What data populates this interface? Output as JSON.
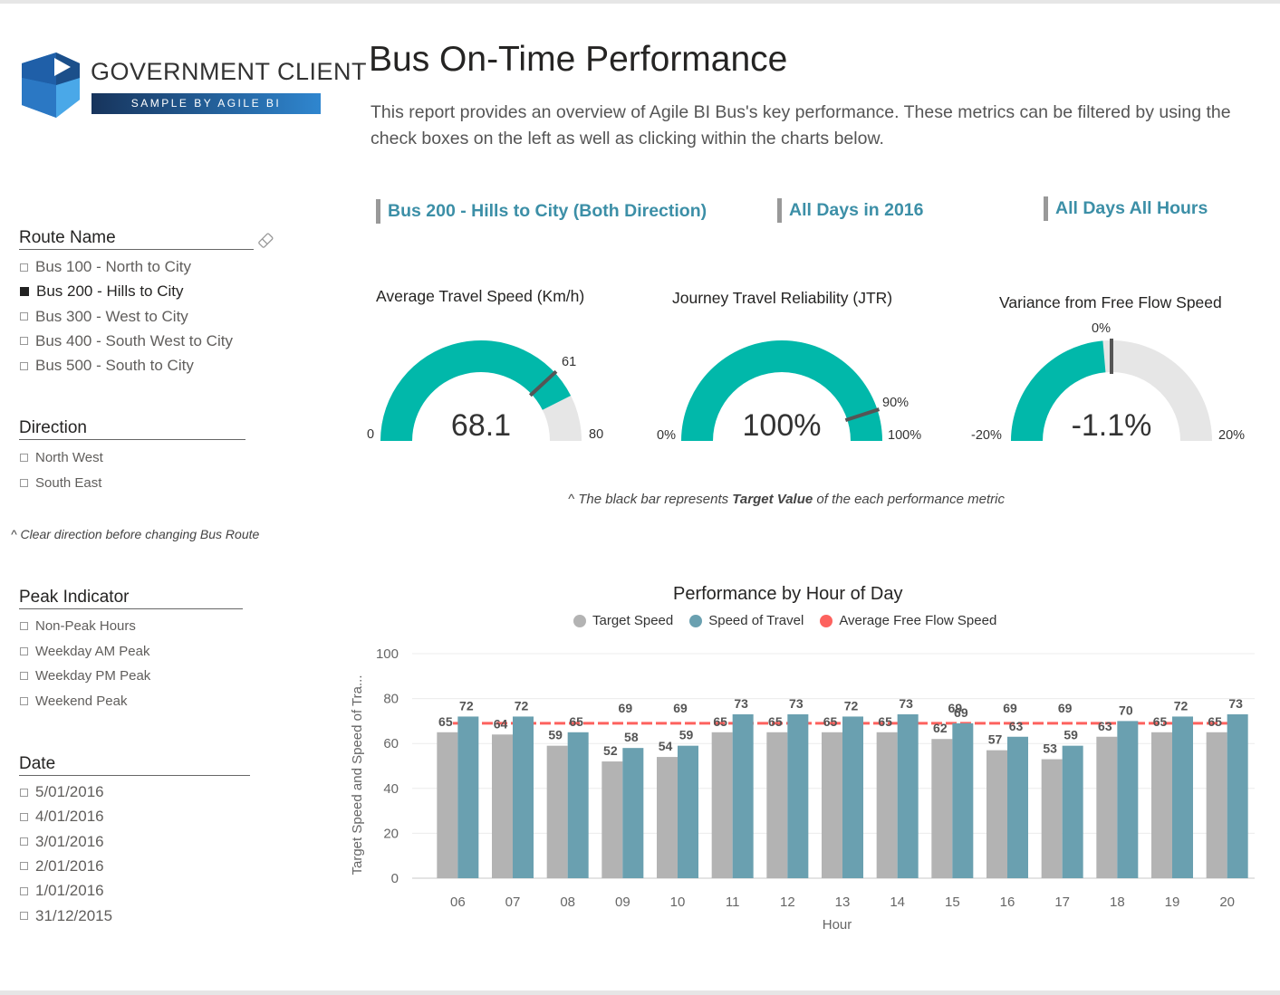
{
  "logo": {
    "name": "GOVERNMENT CLIENT",
    "tagline": "SAMPLE BY AGILE BI"
  },
  "header": {
    "title": "Bus On-Time Performance",
    "description": "This report provides an overview of Agile BI Bus's key performance. These metrics can be filtered by using the check boxes on the left as well as clicking within the charts below."
  },
  "slicers": {
    "route": {
      "title": "Route Name",
      "items": [
        {
          "label": "Bus 100 - North to City",
          "checked": false
        },
        {
          "label": "Bus 200 - Hills to City",
          "checked": true
        },
        {
          "label": "Bus 300 - West to City",
          "checked": false
        },
        {
          "label": "Bus 400 - South West to City",
          "checked": false
        },
        {
          "label": "Bus 500 - South to City",
          "checked": false
        }
      ]
    },
    "direction": {
      "title": "Direction",
      "items": [
        {
          "label": "North West",
          "checked": false
        },
        {
          "label": "South East",
          "checked": false
        }
      ],
      "note": "^ Clear direction before changing Bus Route"
    },
    "peak": {
      "title": "Peak Indicator",
      "items": [
        {
          "label": "Non-Peak Hours",
          "checked": false
        },
        {
          "label": "Weekday AM Peak",
          "checked": false
        },
        {
          "label": "Weekday PM Peak",
          "checked": false
        },
        {
          "label": "Weekend Peak",
          "checked": false
        }
      ]
    },
    "date": {
      "title": "Date",
      "items": [
        {
          "label": "5/01/2016",
          "checked": false
        },
        {
          "label": "4/01/2016",
          "checked": false
        },
        {
          "label": "3/01/2016",
          "checked": false
        },
        {
          "label": "2/01/2016",
          "checked": false
        },
        {
          "label": "1/01/2016",
          "checked": false
        },
        {
          "label": "31/12/2015",
          "checked": false
        }
      ]
    }
  },
  "filters": {
    "route": "Bus 200 - Hills to City (Both Direction)",
    "period": "All Days in 2016",
    "hours": "All Days All Hours"
  },
  "gauges": {
    "speed": {
      "title": "Average Travel Speed (Km/h)",
      "value_label": "68.1",
      "value": 68.1,
      "min": 0,
      "max": 80,
      "target": 61,
      "min_label": "0",
      "max_label": "80",
      "target_label": "61"
    },
    "jtr": {
      "title": "Journey Travel Reliability (JTR)",
      "value_label": "100%",
      "value": 100,
      "min": 0,
      "max": 100,
      "target": 90,
      "min_label": "0%",
      "max_label": "100%",
      "target_label": "90%"
    },
    "variance": {
      "title": "Variance from Free Flow Speed",
      "value_label": "-1.1%",
      "value": -1.1,
      "min": -20,
      "max": 20,
      "target": 0,
      "min_label": "-20%",
      "max_label": "20%",
      "target_label": "0%"
    }
  },
  "gauge_note": {
    "prefix": "^ The black bar represents ",
    "bold": "Target Value",
    "suffix": " of the each performance metric"
  },
  "colors": {
    "teal": "#01b8aa",
    "track": "#e6e6e6",
    "target_bar": "#b3b3b3",
    "speed_bar": "#6aa0b0",
    "free_flow": "#fd625e",
    "filter_text": "#3c8fa7"
  },
  "chart_data": {
    "type": "bar",
    "title": "Performance by Hour of Day",
    "legend": [
      "Target Speed",
      "Speed of Travel",
      "Average Free Flow Speed"
    ],
    "categories": [
      "06",
      "07",
      "08",
      "09",
      "10",
      "11",
      "12",
      "13",
      "14",
      "15",
      "16",
      "17",
      "18",
      "19",
      "20"
    ],
    "series": [
      {
        "name": "Target Speed",
        "values": [
          65,
          64,
          59,
          52,
          54,
          65,
          65,
          65,
          65,
          62,
          57,
          53,
          63,
          65,
          65
        ]
      },
      {
        "name": "Speed of Travel",
        "values": [
          72,
          72,
          65,
          58,
          59,
          73,
          73,
          72,
          73,
          69,
          63,
          59,
          70,
          72,
          73
        ]
      },
      {
        "name": "Average Free Flow Speed",
        "values": [
          69,
          69,
          69,
          69,
          69,
          69,
          69,
          69,
          69,
          69,
          69,
          69,
          69,
          69,
          69
        ]
      }
    ],
    "xlabel": "Hour",
    "ylabel": "Target Speed and Speed of Tra...",
    "ylim": [
      0,
      100
    ],
    "yticks": [
      0,
      20,
      40,
      60,
      80,
      100
    ],
    "free_flow_labels": [
      "69",
      "69",
      "69",
      "69",
      "69",
      "69"
    ]
  }
}
